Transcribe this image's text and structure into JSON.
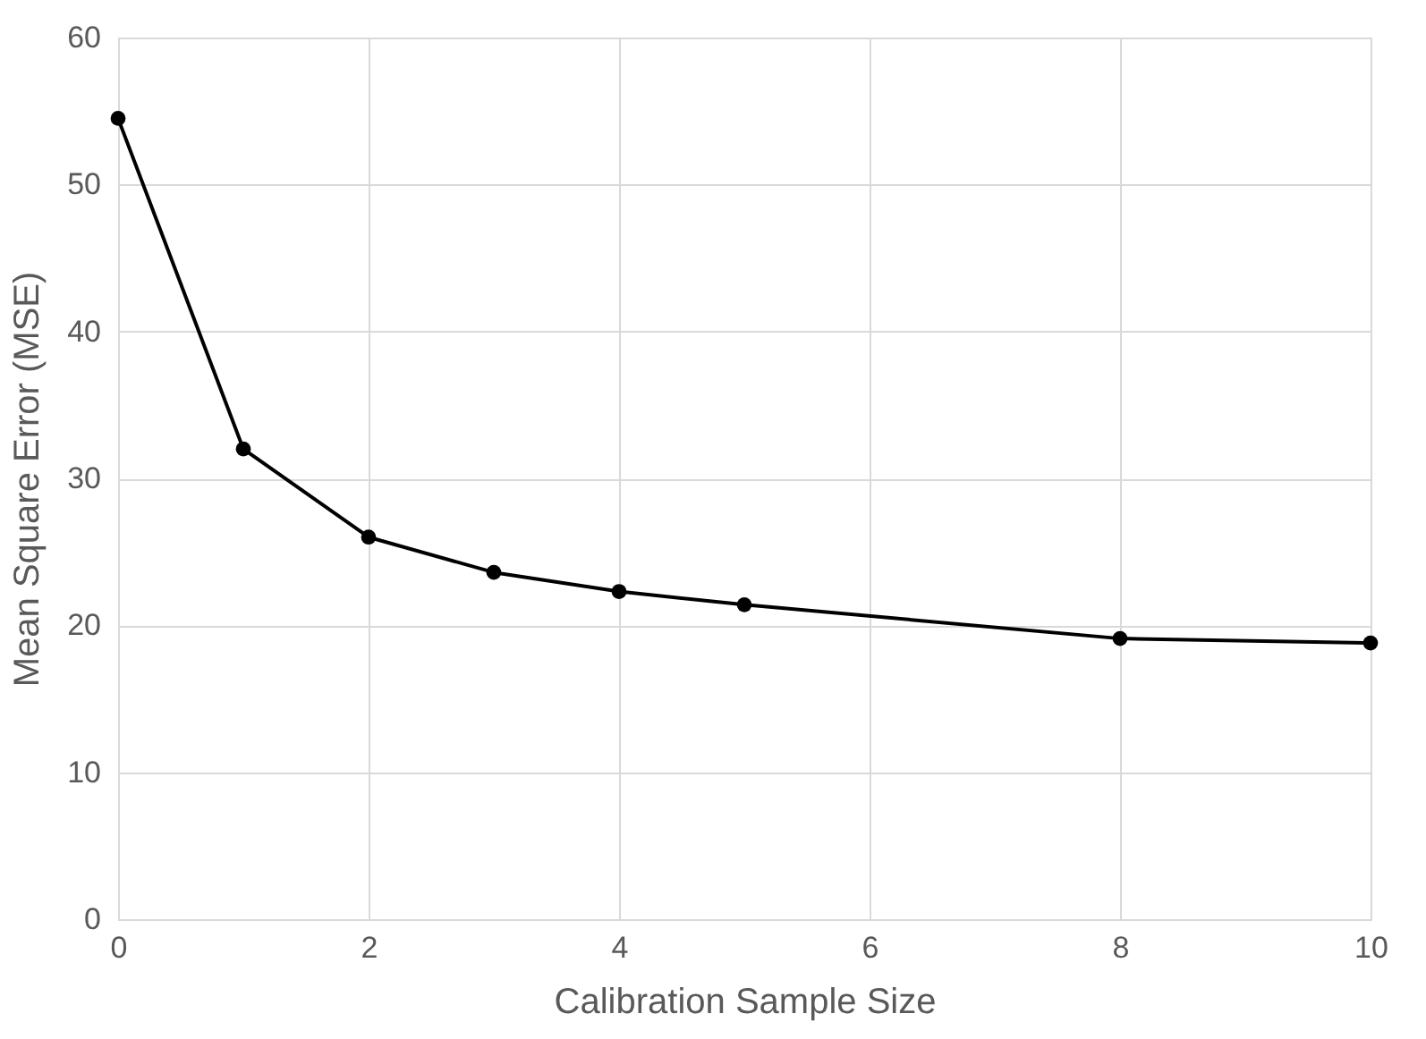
{
  "chart_data": {
    "type": "line",
    "xlabel": "Calibration Sample Size",
    "ylabel": "Mean Square Error (MSE)",
    "x": [
      0,
      1,
      2,
      3,
      4,
      5,
      8,
      10
    ],
    "series": [
      {
        "color": "#000000",
        "values": [
          54.5,
          32.0,
          26.0,
          23.6,
          22.3,
          21.4,
          19.1,
          18.8
        ]
      }
    ],
    "xlim": [
      0,
      10
    ],
    "xticks": [
      0,
      2,
      4,
      6,
      8,
      10
    ],
    "ylim": [
      0,
      60
    ],
    "yticks": [
      0,
      10,
      20,
      30,
      40,
      50,
      60
    ],
    "grid": true,
    "marker": "circle",
    "line_style": "solid"
  }
}
